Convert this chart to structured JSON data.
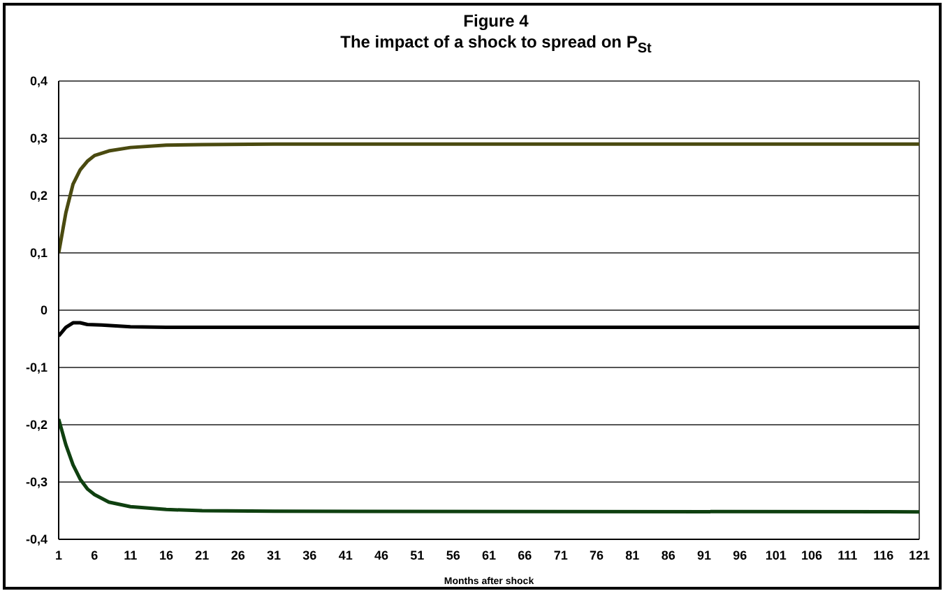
{
  "chart_data": {
    "type": "line",
    "title": "Figure 4",
    "subtitle": "The impact of a shock to spread on P$_{St}$",
    "xlabel": "Months after shock",
    "xlim": [
      1,
      121
    ],
    "xticks": [
      1,
      6,
      11,
      16,
      21,
      26,
      31,
      36,
      41,
      46,
      51,
      56,
      61,
      66,
      71,
      76,
      81,
      86,
      91,
      96,
      101,
      106,
      111,
      116,
      121
    ],
    "ylim": [
      -0.4,
      0.4
    ],
    "yticks": [
      {
        "value": -0.4,
        "label": "-0,4"
      },
      {
        "value": -0.3,
        "label": "-0,3"
      },
      {
        "value": -0.2,
        "label": "-0,2"
      },
      {
        "value": -0.1,
        "label": "-0,1"
      },
      {
        "value": 0,
        "label": "0"
      },
      {
        "value": 0.1,
        "label": "0,1"
      },
      {
        "value": 0.2,
        "label": "0,2"
      },
      {
        "value": 0.3,
        "label": "0,3"
      },
      {
        "value": 0.4,
        "label": "0,4"
      }
    ],
    "grid": "y",
    "legend": false,
    "marker": "none",
    "line_style": "solid",
    "series": [
      {
        "color": "#4a4a10",
        "x": [
          1,
          2,
          3,
          4,
          5,
          6,
          8,
          11,
          16,
          21,
          31,
          121
        ],
        "values": [
          0.1,
          0.17,
          0.22,
          0.245,
          0.26,
          0.27,
          0.278,
          0.284,
          0.288,
          0.289,
          0.29,
          0.29
        ]
      },
      {
        "color": "#000000",
        "x": [
          1,
          2,
          3,
          4,
          5,
          7,
          11,
          16,
          121
        ],
        "values": [
          -0.045,
          -0.03,
          -0.022,
          -0.022,
          -0.025,
          -0.026,
          -0.029,
          -0.03,
          -0.03
        ]
      },
      {
        "color": "#0f4010",
        "x": [
          1,
          2,
          3,
          4,
          5,
          6,
          8,
          11,
          16,
          21,
          31,
          121
        ],
        "values": [
          -0.19,
          -0.235,
          -0.27,
          -0.295,
          -0.312,
          -0.322,
          -0.335,
          -0.343,
          -0.348,
          -0.35,
          -0.351,
          -0.352
        ]
      }
    ]
  }
}
